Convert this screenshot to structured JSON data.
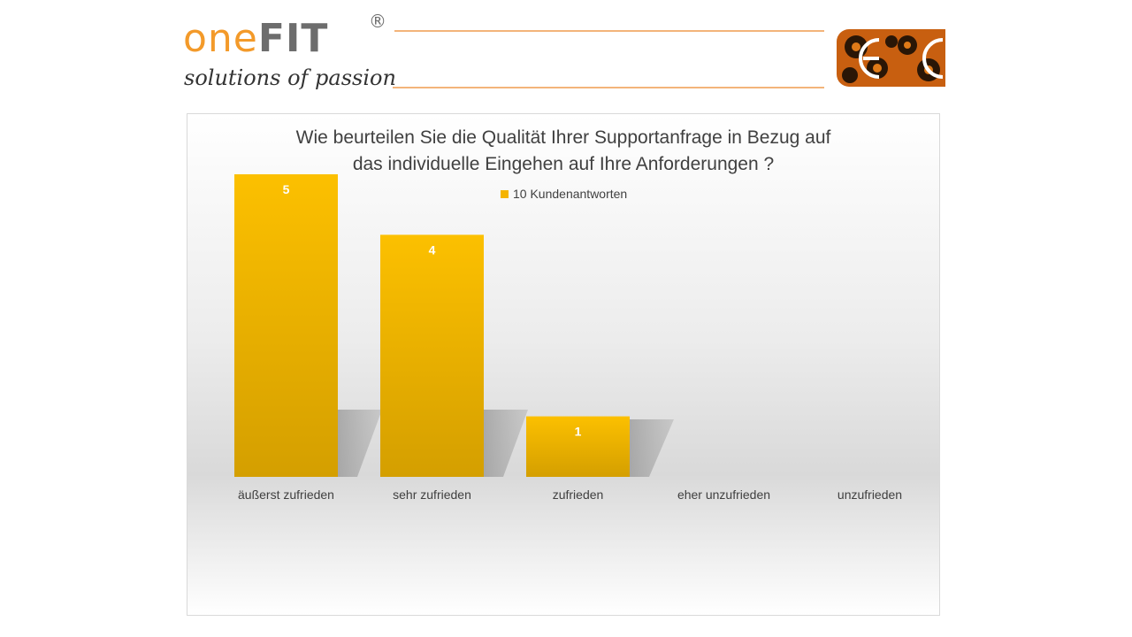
{
  "header": {
    "logo_one": "one",
    "logo_fit": "FIT",
    "logo_reg": "®",
    "tagline": "solutions of passion",
    "accent_color": "#f39a2a",
    "badge_icon": "gear-cogs-badge"
  },
  "chart_data": {
    "type": "bar",
    "title_line1": "Wie beurteilen Sie die Qualität Ihrer Supportanfrage in Bezug auf",
    "title_line2": "das individuelle Eingehen auf Ihre Anforderungen ?",
    "categories": [
      "äußerst zufrieden",
      "sehr zufrieden",
      "zufrieden",
      "eher unzufrieden",
      "unzufrieden"
    ],
    "series": [
      {
        "name": "10 Kundenantworten",
        "values": [
          5,
          4,
          1,
          0,
          0
        ],
        "color": "#f5b400"
      }
    ],
    "ylim": [
      0,
      5
    ],
    "grid": false,
    "legend_position": "top",
    "data_labels": true
  }
}
